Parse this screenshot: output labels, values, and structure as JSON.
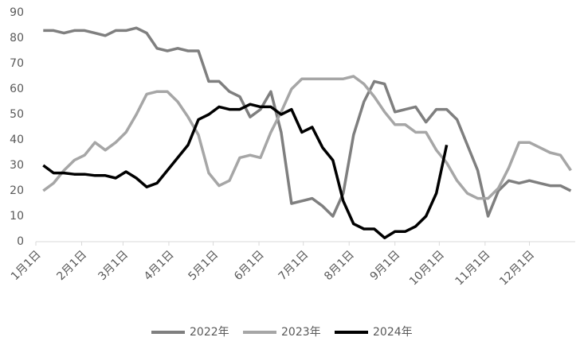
{
  "chart_data": {
    "type": "line",
    "x": [
      6,
      13,
      20,
      27,
      34,
      41,
      48,
      55,
      62,
      69,
      76,
      83,
      90,
      97,
      104,
      111,
      118,
      125,
      132,
      139,
      146,
      153,
      160,
      167,
      174,
      181,
      188,
      195,
      202,
      209,
      216,
      223,
      230,
      237,
      244,
      251,
      258,
      265,
      272,
      279,
      286,
      293,
      300,
      307,
      314,
      321,
      328,
      335,
      342,
      349,
      356,
      363
    ],
    "series": [
      {
        "name": "2022年",
        "color": "#7f7f7f",
        "values": [
          83,
          83,
          82,
          83,
          83,
          82,
          81,
          83,
          83,
          84,
          82,
          76,
          75,
          76,
          75,
          75,
          63,
          63,
          59,
          57,
          49,
          52,
          59,
          43,
          15,
          16,
          17,
          14,
          10,
          19,
          42,
          55,
          63,
          62,
          51,
          52,
          53,
          47,
          52,
          52,
          48,
          38,
          28,
          10,
          20,
          24,
          23,
          24,
          23,
          22,
          22,
          20
        ]
      },
      {
        "name": "2023年",
        "color": "#a6a6a6",
        "values": [
          20,
          23,
          28,
          32,
          34,
          39,
          36,
          39,
          43,
          50,
          58,
          59,
          59,
          55,
          49,
          42,
          27,
          22,
          24,
          33,
          34,
          33,
          43,
          51,
          60,
          64,
          64,
          64,
          64,
          64,
          65,
          62,
          57,
          51,
          46,
          46,
          43,
          43,
          36,
          31,
          24,
          19,
          17,
          17,
          21,
          29,
          39,
          39,
          37,
          35,
          34,
          28
        ]
      },
      {
        "name": "2024年",
        "color": "#000000",
        "values": [
          30,
          27,
          27,
          26.5,
          26.5,
          26,
          26,
          25,
          27.5,
          25,
          21.5,
          23,
          28,
          33,
          38,
          48,
          50,
          53,
          52,
          52,
          54,
          53,
          53,
          50,
          52,
          43,
          45,
          37,
          32,
          16,
          7,
          5,
          5,
          1.5,
          4,
          4,
          6,
          10,
          19,
          38,
          null,
          null,
          null,
          null,
          null,
          null,
          null,
          null,
          null,
          null,
          null,
          null
        ]
      }
    ],
    "xlim": [
      1,
      366
    ],
    "xticks": [
      {
        "value": 1,
        "label": "1月1日"
      },
      {
        "value": 32,
        "label": "2月1日"
      },
      {
        "value": 60,
        "label": "3月1日"
      },
      {
        "value": 91,
        "label": "4月1日"
      },
      {
        "value": 121,
        "label": "5月1日"
      },
      {
        "value": 152,
        "label": "6月1日"
      },
      {
        "value": 182,
        "label": "7月1日"
      },
      {
        "value": 213,
        "label": "8月1日"
      },
      {
        "value": 244,
        "label": "9月1日"
      },
      {
        "value": 274,
        "label": "10月1日"
      },
      {
        "value": 305,
        "label": "11月1日"
      },
      {
        "value": 335,
        "label": "12月1日"
      }
    ],
    "ylim": [
      0,
      90
    ],
    "yticks": [
      0,
      10,
      20,
      30,
      40,
      50,
      60,
      70,
      80,
      90
    ],
    "legend": "bottom"
  }
}
